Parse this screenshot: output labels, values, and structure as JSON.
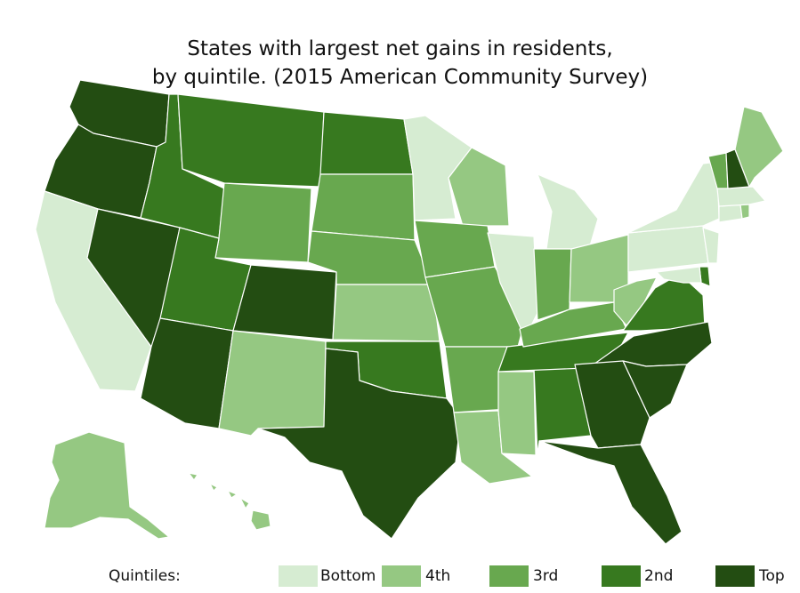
{
  "title_line1": "States with largest net gains in residents,",
  "title_line2": "by quintile. (2015 American Community Survey)",
  "legend": {
    "label": "Quintiles:",
    "items": [
      {
        "name": "Bottom",
        "color": "#d6ecd2"
      },
      {
        "name": "4th",
        "color": "#95c882"
      },
      {
        "name": "3rd",
        "color": "#68a84f"
      },
      {
        "name": "2nd",
        "color": "#37791f"
      },
      {
        "name": "Top",
        "color": "#234d12"
      }
    ]
  },
  "states": {
    "WA": "Top",
    "OR": "Top",
    "NV": "Top",
    "AZ": "Top",
    "CO": "Top",
    "TX": "Top",
    "FL": "Top",
    "GA": "Top",
    "SC": "Top",
    "NC": "Top",
    "NH": "Top",
    "ID": "2nd",
    "MT": "2nd",
    "UT": "2nd",
    "ND": "2nd",
    "OK": "2nd",
    "TN": "2nd",
    "AL": "2nd",
    "VA": "2nd",
    "DE": "2nd",
    "WY": "3rd",
    "SD": "3rd",
    "NE": "3rd",
    "IA": "3rd",
    "MO": "3rd",
    "AR": "3rd",
    "IN": "3rd",
    "KY": "3rd",
    "VT": "3rd",
    "NM": "4th",
    "KS": "4th",
    "WI": "4th",
    "LA": "4th",
    "MS": "4th",
    "OH": "4th",
    "WV": "4th",
    "ME": "4th",
    "AK": "4th",
    "HI": "4th",
    "RI": "4th",
    "CA": "Bottom",
    "MN": "Bottom",
    "MI": "Bottom",
    "IL": "Bottom",
    "NY": "Bottom",
    "PA": "Bottom",
    "NJ": "Bottom",
    "MD": "Bottom",
    "CT": "Bottom",
    "MA": "Bottom"
  }
}
